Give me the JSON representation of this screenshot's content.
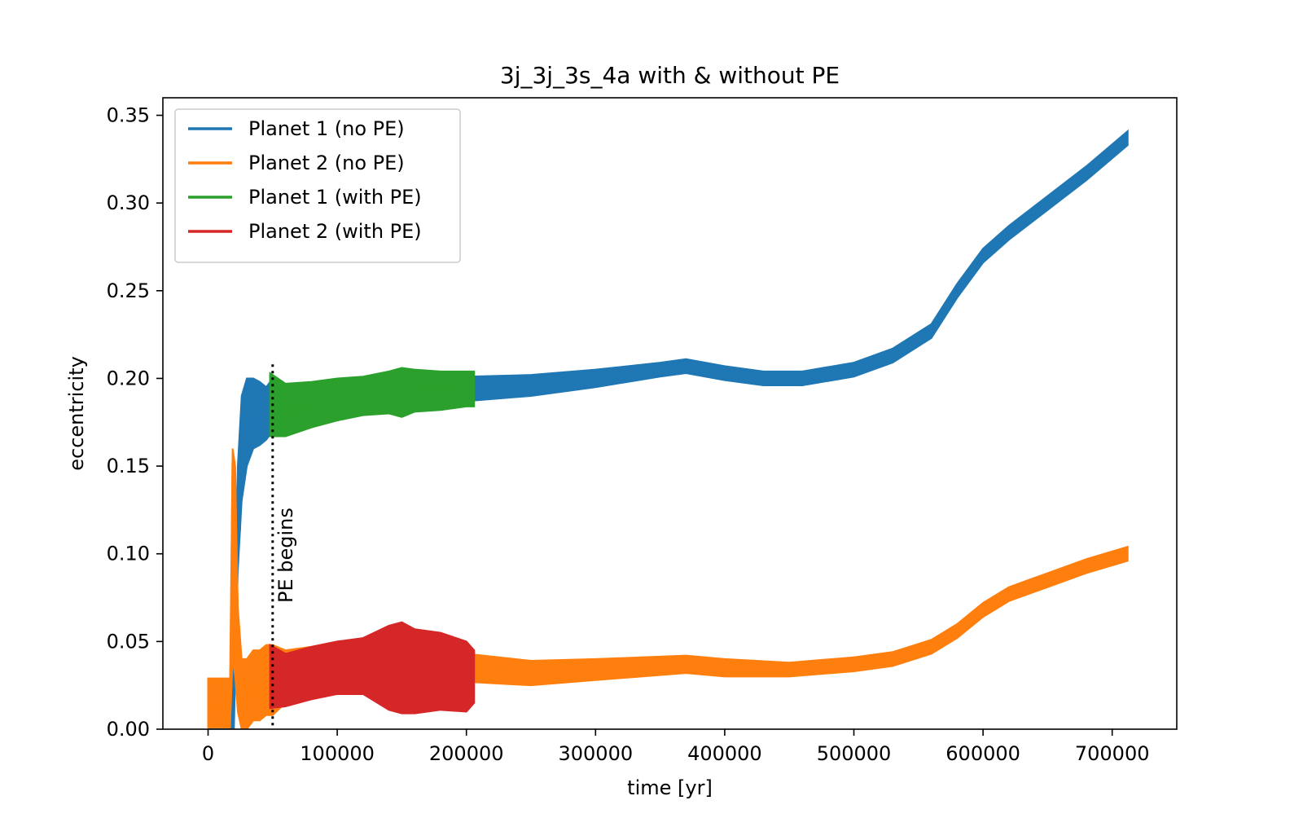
{
  "chart_data": {
    "type": "line",
    "title": "3j_3j_3s_4a with & without PE",
    "xlabel": "time [yr]",
    "ylabel": "eccentricity",
    "xlim": [
      -35000,
      750000
    ],
    "ylim": [
      0.0,
      0.36
    ],
    "x_ticks": [
      0,
      100000,
      200000,
      300000,
      400000,
      500000,
      600000,
      700000
    ],
    "x_tick_labels": [
      "0",
      "100000",
      "200000",
      "300000",
      "400000",
      "500000",
      "600000",
      "700000"
    ],
    "y_ticks": [
      0.0,
      0.05,
      0.1,
      0.15,
      0.2,
      0.25,
      0.3,
      0.35
    ],
    "y_tick_labels": [
      "0.00",
      "0.05",
      "0.10",
      "0.15",
      "0.20",
      "0.25",
      "0.30",
      "0.35"
    ],
    "grid": false,
    "legend_position": "upper-left",
    "annotation": {
      "text": "PE begins",
      "x": 50000,
      "line_style": "dotted",
      "y_range": [
        0.0,
        0.208
      ]
    },
    "series": [
      {
        "name": "Planet 1 (no PE)",
        "color": "#1f77b4",
        "x": [
          0,
          10000,
          17000,
          20000,
          23000,
          26000,
          30000,
          35000,
          40000,
          45000,
          50000,
          60000,
          70000,
          80000,
          100000,
          120000,
          150000,
          180000,
          200000,
          250000,
          300000,
          350000,
          370000,
          400000,
          430000,
          460000,
          500000,
          530000,
          560000,
          580000,
          600000,
          620000,
          650000,
          680000,
          712000
        ],
        "y_mid": [
          0.0,
          0.0,
          0.0,
          0.02,
          0.12,
          0.16,
          0.175,
          0.18,
          0.18,
          0.18,
          0.185,
          0.183,
          0.185,
          0.185,
          0.188,
          0.19,
          0.192,
          0.193,
          0.194,
          0.196,
          0.2,
          0.205,
          0.207,
          0.203,
          0.2,
          0.2,
          0.205,
          0.213,
          0.227,
          0.25,
          0.27,
          0.283,
          0.3,
          0.317,
          0.337
        ],
        "y_half_width": [
          0.0,
          0.0,
          0.0,
          0.02,
          0.03,
          0.03,
          0.025,
          0.02,
          0.018,
          0.015,
          0.015,
          0.013,
          0.012,
          0.01,
          0.009,
          0.008,
          0.008,
          0.007,
          0.007,
          0.006,
          0.005,
          0.004,
          0.004,
          0.004,
          0.004,
          0.004,
          0.004,
          0.004,
          0.004,
          0.004,
          0.004,
          0.004,
          0.004,
          0.004,
          0.004
        ]
      },
      {
        "name": "Planet 2 (no PE)",
        "color": "#ff7f0e",
        "x": [
          0,
          10000,
          17000,
          19000,
          21000,
          23000,
          26000,
          30000,
          35000,
          40000,
          45000,
          50000,
          60000,
          80000,
          100000,
          130000,
          150000,
          200000,
          250000,
          300000,
          370000,
          400000,
          450000,
          500000,
          530000,
          560000,
          580000,
          600000,
          620000,
          650000,
          680000,
          712000
        ],
        "y_mid": [
          0.015,
          0.015,
          0.015,
          0.1,
          0.09,
          0.04,
          0.02,
          0.02,
          0.025,
          0.025,
          0.028,
          0.028,
          0.03,
          0.035,
          0.04,
          0.043,
          0.04,
          0.035,
          0.032,
          0.034,
          0.037,
          0.035,
          0.034,
          0.037,
          0.04,
          0.047,
          0.056,
          0.068,
          0.077,
          0.085,
          0.093,
          0.1
        ],
        "y_half_width": [
          0.014,
          0.014,
          0.014,
          0.06,
          0.06,
          0.03,
          0.02,
          0.02,
          0.02,
          0.02,
          0.02,
          0.02,
          0.015,
          0.012,
          0.01,
          0.009,
          0.009,
          0.008,
          0.007,
          0.006,
          0.005,
          0.005,
          0.004,
          0.004,
          0.004,
          0.004,
          0.004,
          0.004,
          0.004,
          0.004,
          0.004,
          0.004
        ]
      },
      {
        "name": "Planet 1 (with PE)",
        "color": "#2ca02c",
        "x": [
          48000,
          60000,
          80000,
          100000,
          120000,
          140000,
          150000,
          160000,
          180000,
          200000,
          206000
        ],
        "y_mid": [
          0.185,
          0.182,
          0.185,
          0.188,
          0.19,
          0.192,
          0.192,
          0.193,
          0.193,
          0.194,
          0.194
        ],
        "y_half_width": [
          0.018,
          0.015,
          0.013,
          0.012,
          0.011,
          0.012,
          0.014,
          0.012,
          0.011,
          0.01,
          0.01
        ]
      },
      {
        "name": "Planet 2 (with PE)",
        "color": "#d62728",
        "x": [
          48000,
          60000,
          80000,
          100000,
          120000,
          140000,
          150000,
          160000,
          180000,
          200000,
          206000
        ],
        "y_mid": [
          0.03,
          0.028,
          0.032,
          0.035,
          0.036,
          0.035,
          0.035,
          0.033,
          0.033,
          0.03,
          0.03
        ],
        "y_half_width": [
          0.018,
          0.015,
          0.015,
          0.015,
          0.016,
          0.024,
          0.026,
          0.024,
          0.022,
          0.02,
          0.015
        ]
      }
    ]
  }
}
